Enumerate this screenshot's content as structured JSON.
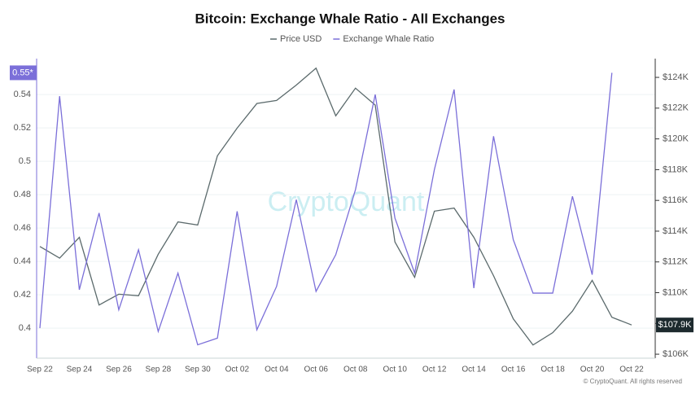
{
  "chart_data": {
    "type": "line",
    "title": "Bitcoin: Exchange Whale Ratio - All Exchanges",
    "watermark": "CryptoQuant",
    "footer": "© CryptoQuant. All rights reserved",
    "categories": [
      "Sep 22",
      null,
      "Sep 24",
      null,
      "Sep 26",
      null,
      "Sep 28",
      null,
      "Sep 30",
      null,
      "Oct 02",
      null,
      "Oct 04",
      null,
      "Oct 06",
      null,
      "Oct 08",
      null,
      "Oct 10",
      null,
      "Oct 12",
      null,
      "Oct 14",
      null,
      "Oct 16",
      null,
      "Oct 18",
      null,
      "Oct 20",
      null,
      "Oct 22"
    ],
    "series": [
      {
        "name": "Price USD",
        "color": "#5b6a6c",
        "axis": "y2",
        "current_label": "$107.9K",
        "values": [
          113000,
          112250,
          113600,
          109200,
          109900,
          109800,
          112500,
          114600,
          114400,
          118900,
          120700,
          122300,
          122500,
          123500,
          124600,
          121500,
          123300,
          122200,
          113300,
          111000,
          115300,
          115500,
          113600,
          111100,
          108300,
          106600,
          107400,
          108800,
          110800,
          108400,
          107900
        ]
      },
      {
        "name": "Exchange Whale Ratio",
        "color": "#7b6fd9",
        "current_label": "0.55*",
        "values": [
          0.4,
          0.539,
          0.423,
          0.469,
          0.411,
          0.447,
          0.398,
          0.433,
          0.39,
          0.394,
          0.47,
          0.399,
          0.425,
          0.477,
          0.422,
          0.444,
          0.483,
          0.54,
          0.466,
          0.433,
          0.495,
          0.543,
          0.424,
          0.515,
          0.453,
          0.421,
          0.421,
          0.479,
          0.432,
          0.553,
          null
        ]
      }
    ],
    "ylim": [
      0.382,
      0.5615
    ],
    "yticks": [
      0.4,
      0.42,
      0.44,
      0.46,
      0.48,
      0.5,
      0.52,
      0.54
    ],
    "y2lim": [
      105740,
      125220
    ],
    "y2ticks": [
      {
        "value": 106000,
        "label": "$106K"
      },
      {
        "value": 108000,
        "label": "$108K"
      },
      {
        "value": 110000,
        "label": "$110K"
      },
      {
        "value": 112000,
        "label": "$112K"
      },
      {
        "value": 114000,
        "label": "$114K"
      },
      {
        "value": 116000,
        "label": "$116K"
      },
      {
        "value": 118000,
        "label": "$118K"
      },
      {
        "value": 120000,
        "label": "$120K"
      },
      {
        "value": 122000,
        "label": "$122K"
      },
      {
        "value": 124000,
        "label": "$124K"
      }
    ],
    "grid": true
  }
}
